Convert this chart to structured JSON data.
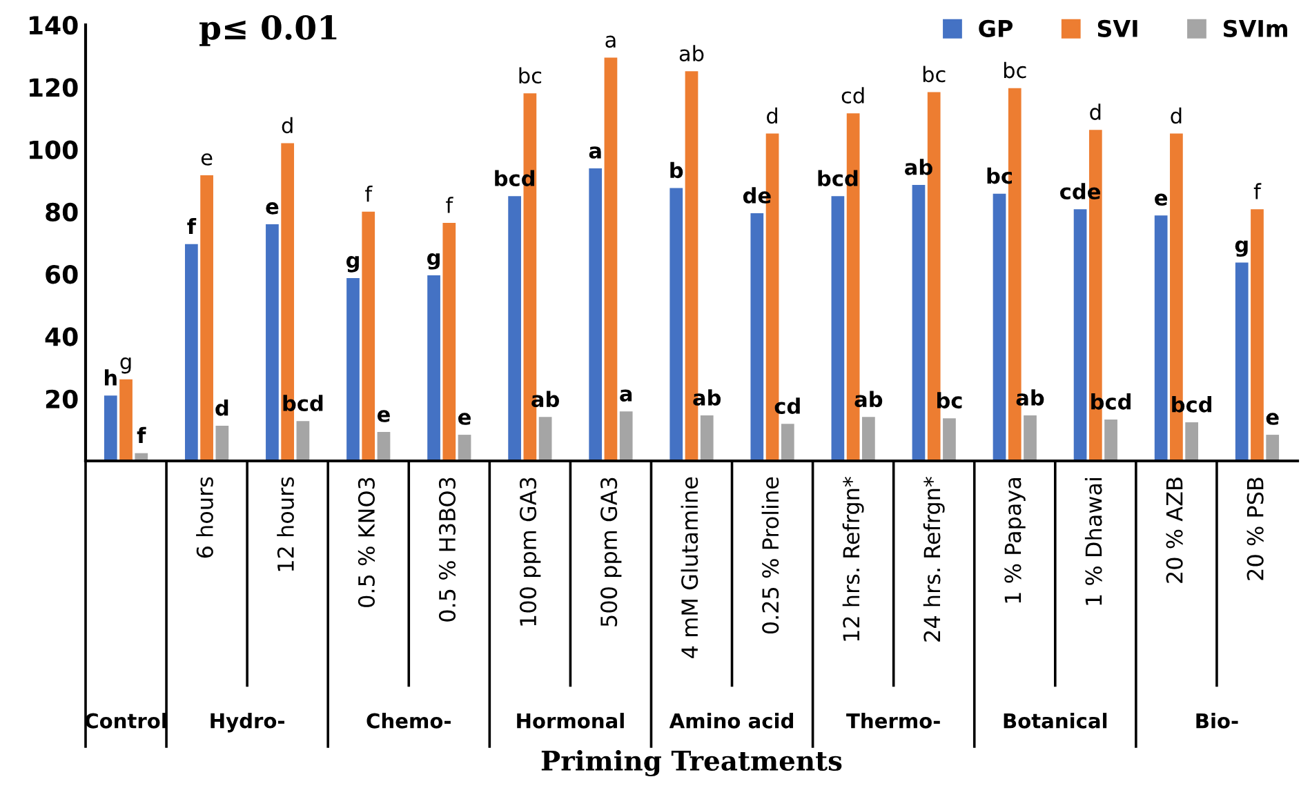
{
  "chart_data": {
    "type": "bar",
    "xlabel": "Priming Treatments",
    "categories": [
      null,
      "6 hours",
      "12 hours",
      "0.5 % KNO3",
      "0.5 % H3BO3",
      "100 ppm GA3",
      "500 ppm GA3",
      "4 mM Glutamine",
      "0.25 % Proline",
      "12 hrs. Refrgn*",
      "24 hrs. Refrgn*",
      "1 % Papaya",
      "1 % Dhawai",
      "20 % AZB",
      "20 % PSB"
    ],
    "series": [
      {
        "name": "GP",
        "color": "#4472c4",
        "values": [
          21,
          69.6,
          76,
          58.7,
          59.6,
          85,
          93.9,
          87.6,
          79.5,
          85,
          88.6,
          85.8,
          80.8,
          78.8,
          63.7
        ]
      },
      {
        "name": "SVI",
        "color": "#ed7d31",
        "values": [
          26.2,
          91.7,
          102,
          80,
          76.4,
          118,
          129.5,
          125.1,
          105.1,
          111.6,
          118.4,
          119.7,
          106.3,
          105.1,
          80.8
        ]
      },
      {
        "name": "SVIm",
        "color": "#a5a5a5",
        "values": [
          2.5,
          11.3,
          12.8,
          9.3,
          8.4,
          14.1,
          15.9,
          14.6,
          11.9,
          14.1,
          13.7,
          14.6,
          13.3,
          12.4,
          8.4
        ]
      }
    ],
    "ylim": [
      0,
      140
    ],
    "yticks": [
      20,
      40,
      60,
      80,
      100,
      120,
      140
    ],
    "legend": "top right",
    "grid": false,
    "annotations": [
      "p≤ 0.01",
      "Control",
      "Hydro-",
      "Chemo-",
      "Hormonal",
      "Amino acid",
      "Thermo-",
      "Botanical",
      "Bio-",
      {
        "text": "h",
        "y": 21
      },
      {
        "text": "g",
        "y": 26.2
      },
      {
        "text": "f",
        "y": 2.5
      },
      {
        "text": "f",
        "x": "6 hours",
        "y": 69.6
      },
      {
        "text": "e",
        "x": "6 hours",
        "y": 91.7
      },
      {
        "text": "d",
        "x": "6 hours",
        "y": 11.3
      },
      {
        "text": "e",
        "x": "12 hours",
        "y": 76
      },
      {
        "text": "d",
        "x": "12 hours",
        "y": 102
      },
      {
        "text": "bcd",
        "x": "12 hours",
        "y": 12.8
      },
      {
        "text": "g",
        "x": "0.5 % KNO3",
        "y": 58.7
      },
      {
        "text": "f",
        "x": "0.5 % KNO3",
        "y": 80
      },
      {
        "text": "e",
        "x": "0.5 % KNO3",
        "y": 9.3
      },
      {
        "text": "g",
        "x": "0.5 % H3BO3",
        "y": 59.6
      },
      {
        "text": "f",
        "x": "0.5 % H3BO3",
        "y": 76.4
      },
      {
        "text": "e",
        "x": "0.5 % H3BO3",
        "y": 8.4
      },
      {
        "text": "bcd",
        "x": "100 ppm GA3",
        "y": 85
      },
      {
        "text": "bc",
        "x": "100 ppm GA3",
        "y": 118
      },
      {
        "text": "ab",
        "x": "100 ppm GA3",
        "y": 14.1
      },
      {
        "text": "a",
        "x": "500 ppm GA3",
        "y": 93.9
      },
      {
        "text": "a",
        "x": "500 ppm GA3",
        "y": 129.5
      },
      {
        "text": "a",
        "x": "500 ppm GA3",
        "y": 15.9
      },
      {
        "text": "b",
        "x": "4 mM Glutamine",
        "y": 87.6
      },
      {
        "text": "ab",
        "x": "4 mM Glutamine",
        "y": 125.1
      },
      {
        "text": "ab",
        "x": "4 mM Glutamine",
        "y": 14.6
      },
      {
        "text": "de",
        "x": "0.25 % Proline",
        "y": 79.5
      },
      {
        "text": "d",
        "x": "0.25 % Proline",
        "y": 105.1
      },
      {
        "text": "cd",
        "x": "0.25 % Proline",
        "y": 11.9
      },
      {
        "text": "bcd",
        "x": "12 hrs. Refrgn*",
        "y": 85
      },
      {
        "text": "cd",
        "x": "12 hrs. Refrgn*",
        "y": 111.6
      },
      {
        "text": "ab",
        "x": "12 hrs. Refrgn*",
        "y": 14.1
      },
      {
        "text": "ab",
        "x": "24 hrs. Refrgn*",
        "y": 88.6
      },
      {
        "text": "bc",
        "x": "24 hrs. Refrgn*",
        "y": 118.4
      },
      {
        "text": "bc",
        "x": "24 hrs. Refrgn*",
        "y": 13.7
      },
      {
        "text": "bc",
        "x": "1 % Papaya",
        "y": 85.8
      },
      {
        "text": "bc",
        "x": "1 % Papaya",
        "y": 119.7
      },
      {
        "text": "ab",
        "x": "1 % Papaya",
        "y": 14.6
      },
      {
        "text": "cde",
        "x": "1 % Dhawai",
        "y": 80.8
      },
      {
        "text": "d",
        "x": "1 % Dhawai",
        "y": 106.3
      },
      {
        "text": "bcd",
        "x": "1 % Dhawai",
        "y": 13.3
      },
      {
        "text": "e",
        "x": "20 % AZB",
        "y": 78.8
      },
      {
        "text": "d",
        "x": "20 % AZB",
        "y": 105.1
      },
      {
        "text": "bcd",
        "x": "20 % AZB",
        "y": 12.4
      },
      {
        "text": "g",
        "x": "20 % PSB",
        "y": 63.7
      },
      {
        "text": "f",
        "x": "20 % PSB",
        "y": 80.8
      },
      {
        "text": "e",
        "x": "20 % PSB",
        "y": 8.4
      }
    ]
  }
}
